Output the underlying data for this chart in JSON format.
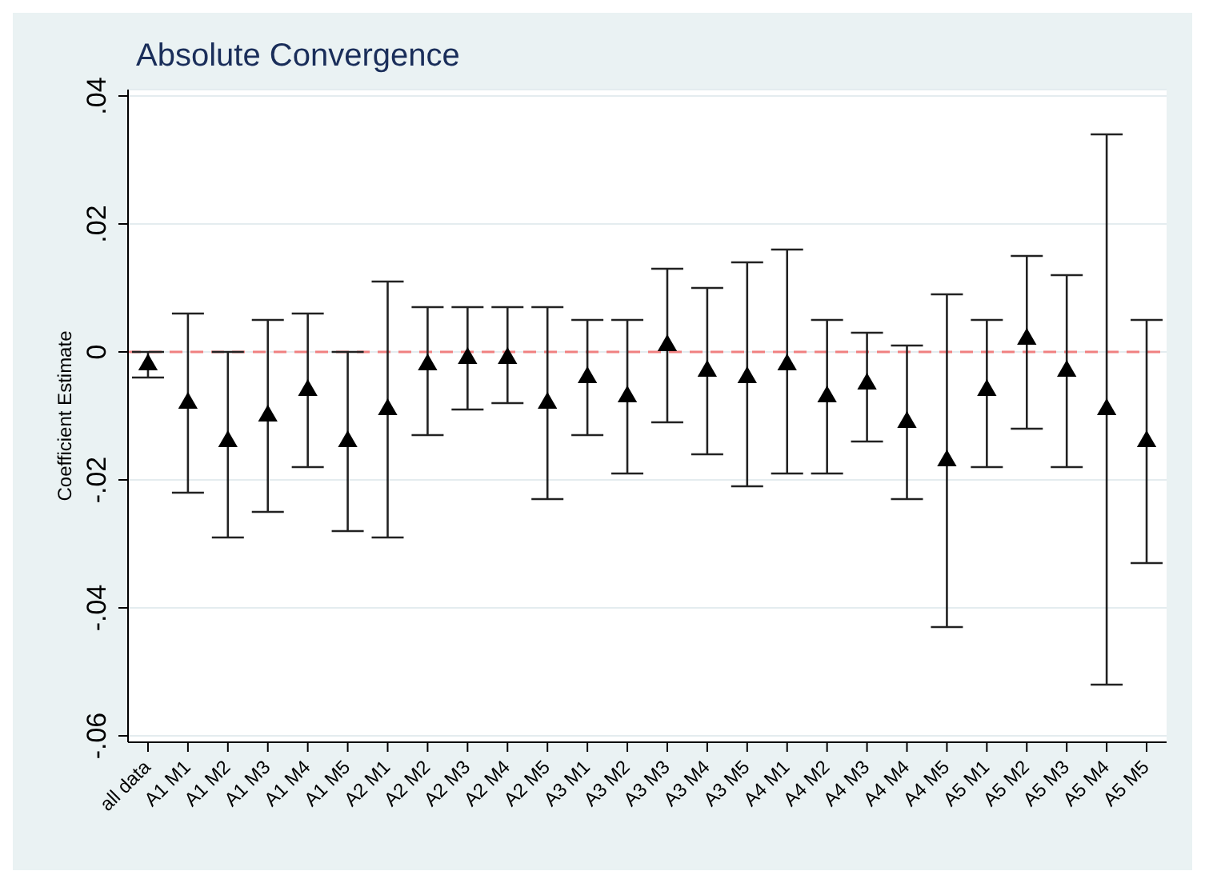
{
  "chart_data": {
    "type": "scatter",
    "title": "Absolute Convergence",
    "ylabel": "Coefficient Estimate",
    "categories": [
      "all data",
      "A1 M1",
      "A1 M2",
      "A1 M3",
      "A1 M4",
      "A1 M5",
      "A2 M1",
      "A2 M2",
      "A2 M3",
      "A2 M4",
      "A2 M5",
      "A3 M1",
      "A3 M2",
      "A3 M3",
      "A3 M4",
      "A3 M5",
      "A4 M1",
      "A4 M2",
      "A4 M3",
      "A4 M4",
      "A4 M5",
      "A5 M1",
      "A5 M2",
      "A5 M3",
      "A5 M4",
      "A5 M5"
    ],
    "series": [
      {
        "color": "#000000",
        "values": [
          -0.002,
          -0.008,
          -0.014,
          -0.01,
          -0.006,
          -0.014,
          -0.009,
          -0.002,
          -0.001,
          -0.001,
          -0.008,
          -0.004,
          -0.007,
          0.001,
          -0.003,
          -0.004,
          -0.002,
          -0.007,
          -0.005,
          -0.011,
          -0.017,
          -0.006,
          0.002,
          -0.003,
          -0.009,
          -0.014
        ],
        "errors": [
          [
            -0.004,
            0.0
          ],
          [
            -0.022,
            0.006
          ],
          [
            -0.029,
            0.0
          ],
          [
            -0.025,
            0.005
          ],
          [
            -0.018,
            0.006
          ],
          [
            -0.028,
            0.0
          ],
          [
            -0.029,
            0.011
          ],
          [
            -0.013,
            0.007
          ],
          [
            -0.009,
            0.007
          ],
          [
            -0.008,
            0.007
          ],
          [
            -0.023,
            0.007
          ],
          [
            -0.013,
            0.005
          ],
          [
            -0.019,
            0.005
          ],
          [
            -0.011,
            0.013
          ],
          [
            -0.016,
            0.01
          ],
          [
            -0.021,
            0.014
          ],
          [
            -0.019,
            0.016
          ],
          [
            -0.019,
            0.005
          ],
          [
            -0.014,
            0.003
          ],
          [
            -0.023,
            0.001
          ],
          [
            -0.043,
            0.009
          ],
          [
            -0.018,
            0.005
          ],
          [
            -0.012,
            0.015
          ],
          [
            -0.018,
            0.012
          ],
          [
            -0.052,
            0.034
          ],
          [
            -0.033,
            0.005
          ]
        ]
      }
    ],
    "ylim": [
      -0.061,
      0.041
    ],
    "yticks": [
      {
        "value": -0.06,
        "label": "-.06"
      },
      {
        "value": -0.04,
        "label": "-.04"
      },
      {
        "value": -0.02,
        "label": "-.02"
      },
      0,
      {
        "value": 0.02,
        "label": ".02"
      },
      {
        "value": 0.04,
        "label": ".04"
      }
    ],
    "ref_lines": [
      {
        "axis": "y",
        "value": 0,
        "color": "#f08080",
        "line_style": "dashed"
      }
    ],
    "grid": "y",
    "legend": false,
    "marker": "triangle"
  }
}
